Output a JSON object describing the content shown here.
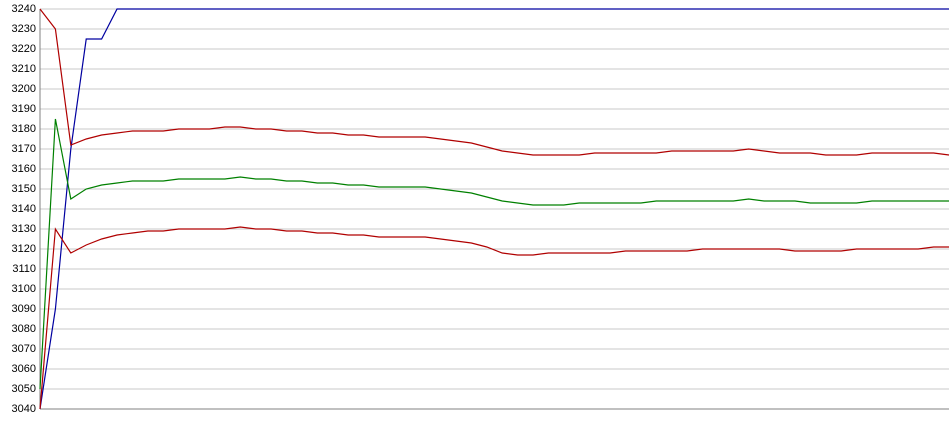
{
  "chart_data": {
    "type": "line",
    "categories": [
      null,
      null,
      null,
      null,
      null,
      null,
      null,
      null,
      null,
      null,
      null,
      null,
      null,
      null,
      null,
      null,
      null,
      null,
      null,
      null,
      null,
      null,
      null,
      null,
      null,
      null,
      null,
      null,
      null,
      null,
      null,
      null,
      null,
      null,
      null,
      null,
      null,
      null,
      null,
      null,
      null,
      null,
      null,
      null,
      null,
      null,
      null,
      null,
      null,
      null,
      null,
      null,
      null,
      null,
      null,
      null,
      null,
      null,
      null,
      null
    ],
    "series": [
      {
        "color": "#0000a0",
        "values": [
          3040,
          3090,
          3170,
          3225,
          3225,
          3240,
          3240,
          3240,
          3240,
          3240,
          3240,
          3240,
          3240,
          3240,
          3240,
          3240,
          3240,
          3240,
          3240,
          3240,
          3240,
          3240,
          3240,
          3240,
          3240,
          3240,
          3240,
          3240,
          3240,
          3240,
          3240,
          3240,
          3240,
          3240,
          3240,
          3240,
          3240,
          3240,
          3240,
          3240,
          3240,
          3240,
          3240,
          3240,
          3240,
          3240,
          3240,
          3240,
          3240,
          3240,
          3240,
          3240,
          3240,
          3240,
          3240,
          3240,
          3240,
          3240,
          3240,
          3240
        ]
      },
      {
        "color": "#b00000",
        "values": [
          3240,
          3230,
          3172,
          3175,
          3177,
          3178,
          3179,
          3179,
          3179,
          3180,
          3180,
          3180,
          3181,
          3181,
          3180,
          3180,
          3179,
          3179,
          3178,
          3178,
          3177,
          3177,
          3176,
          3176,
          3176,
          3176,
          3175,
          3174,
          3173,
          3171,
          3169,
          3168,
          3167,
          3167,
          3167,
          3167,
          3168,
          3168,
          3168,
          3168,
          3168,
          3169,
          3169,
          3169,
          3169,
          3169,
          3170,
          3169,
          3168,
          3168,
          3168,
          3167,
          3167,
          3167,
          3168,
          3168,
          3168,
          3168,
          3168,
          3167
        ]
      },
      {
        "color": "#008000",
        "values": [
          3050,
          3185,
          3145,
          3150,
          3152,
          3153,
          3154,
          3154,
          3154,
          3155,
          3155,
          3155,
          3155,
          3156,
          3155,
          3155,
          3154,
          3154,
          3153,
          3153,
          3152,
          3152,
          3151,
          3151,
          3151,
          3151,
          3150,
          3149,
          3148,
          3146,
          3144,
          3143,
          3142,
          3142,
          3142,
          3143,
          3143,
          3143,
          3143,
          3143,
          3144,
          3144,
          3144,
          3144,
          3144,
          3144,
          3145,
          3144,
          3144,
          3144,
          3143,
          3143,
          3143,
          3143,
          3144,
          3144,
          3144,
          3144,
          3144,
          3144
        ]
      },
      {
        "color": "#b00000",
        "values": [
          3040,
          3130,
          3118,
          3122,
          3125,
          3127,
          3128,
          3129,
          3129,
          3130,
          3130,
          3130,
          3130,
          3131,
          3130,
          3130,
          3129,
          3129,
          3128,
          3128,
          3127,
          3127,
          3126,
          3126,
          3126,
          3126,
          3125,
          3124,
          3123,
          3121,
          3118,
          3117,
          3117,
          3118,
          3118,
          3118,
          3118,
          3118,
          3119,
          3119,
          3119,
          3119,
          3119,
          3120,
          3120,
          3120,
          3120,
          3120,
          3120,
          3119,
          3119,
          3119,
          3119,
          3120,
          3120,
          3120,
          3120,
          3120,
          3121,
          3121
        ]
      }
    ],
    "ylim": [
      3040,
      3240
    ],
    "yticks": [
      3040,
      3050,
      3060,
      3070,
      3080,
      3090,
      3100,
      3110,
      3120,
      3130,
      3140,
      3150,
      3160,
      3170,
      3180,
      3190,
      3200,
      3210,
      3220,
      3230,
      3240
    ],
    "grid": true
  }
}
